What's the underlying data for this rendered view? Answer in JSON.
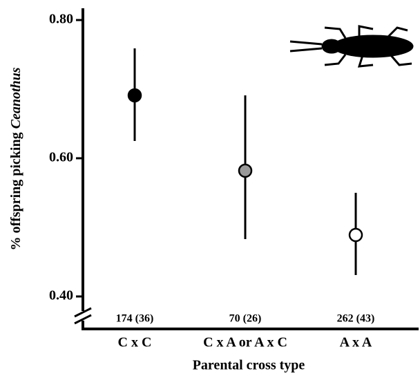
{
  "chart_data": {
    "type": "errorpoint",
    "y_label": [
      "% offspring picking",
      "Ceanothus"
    ],
    "x_label": "Parental cross type",
    "categories": [
      "C x C",
      "C x A or A x C",
      "A x A"
    ],
    "sample_labels": [
      "174 (36)",
      "70 (26)",
      "262 (43)"
    ],
    "series": [
      {
        "values": [
          0.691,
          0.582,
          0.489
        ],
        "lower": [
          0.625,
          0.483,
          0.431
        ],
        "upper": [
          0.759,
          0.691,
          0.55
        ],
        "colors": [
          "#000000",
          "#999999",
          "#ffffff"
        ]
      }
    ],
    "ylim": [
      0.37,
      0.81
    ],
    "yticks": [
      {
        "value": 0.4,
        "label": "0.40"
      },
      {
        "value": 0.6,
        "label": "0.60"
      },
      {
        "value": 0.8,
        "label": "0.80"
      }
    ]
  }
}
